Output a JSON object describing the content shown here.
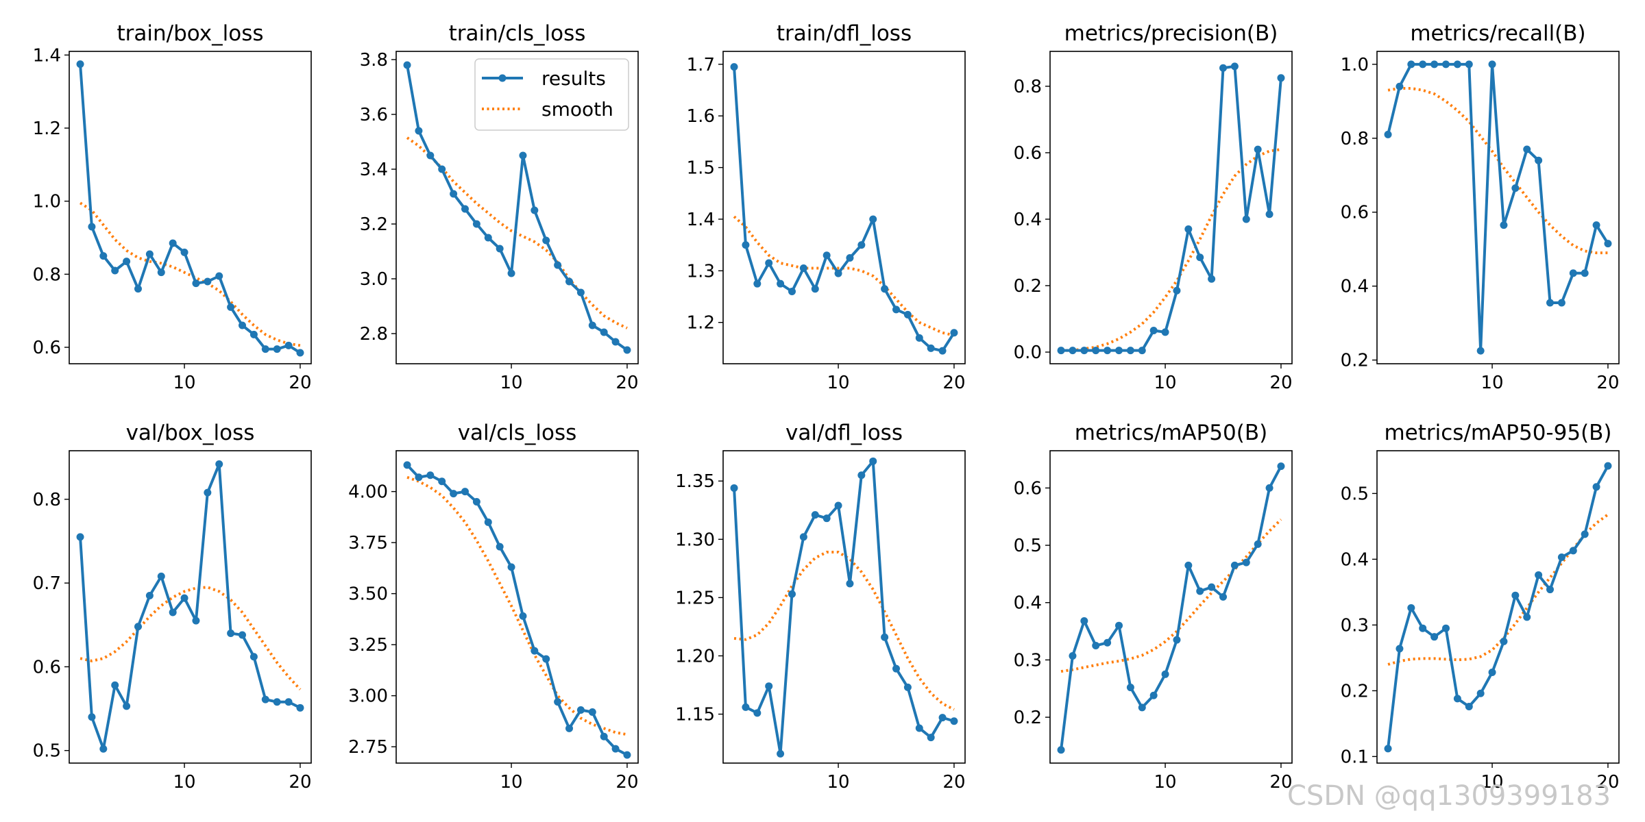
{
  "colors": {
    "results": "#1f77b4",
    "smooth": "#ff7f0e",
    "axis": "#000000",
    "watermark": "#c8c8c8"
  },
  "legend": {
    "results_label": "results",
    "smooth_label": "smooth",
    "placement": "upper-right of train/cls_loss"
  },
  "watermark": "CSDN @qq1309399183",
  "chart_data": [
    {
      "type": "line",
      "title": "train/box_loss",
      "x": [
        1,
        2,
        3,
        4,
        5,
        6,
        7,
        8,
        9,
        10,
        11,
        12,
        13,
        14,
        15,
        16,
        17,
        18,
        19,
        20
      ],
      "xlim": [
        0.05,
        20.95
      ],
      "xticks": [
        10,
        20
      ],
      "ylim": [
        0.555,
        1.41
      ],
      "yticks": [
        0.6,
        0.8,
        1.0,
        1.2,
        1.4
      ],
      "ytick_labels": [
        "0.6",
        "0.8",
        "1.0",
        "1.2",
        "1.4"
      ],
      "series": [
        {
          "name": "results",
          "values": [
            1.375,
            0.93,
            0.85,
            0.81,
            0.835,
            0.76,
            0.855,
            0.805,
            0.885,
            0.86,
            0.775,
            0.78,
            0.795,
            0.71,
            0.66,
            0.635,
            0.595,
            0.595,
            0.605,
            0.585
          ]
        },
        {
          "name": "smooth",
          "values": [
            0.995,
            0.975,
            0.935,
            0.895,
            0.865,
            0.845,
            0.835,
            0.83,
            0.82,
            0.805,
            0.79,
            0.775,
            0.755,
            0.725,
            0.69,
            0.66,
            0.635,
            0.62,
            0.61,
            0.605
          ]
        }
      ]
    },
    {
      "type": "line",
      "title": "train/cls_loss",
      "x": [
        1,
        2,
        3,
        4,
        5,
        6,
        7,
        8,
        9,
        10,
        11,
        12,
        13,
        14,
        15,
        16,
        17,
        18,
        19,
        20
      ],
      "xlim": [
        0.05,
        20.95
      ],
      "xticks": [
        10,
        20
      ],
      "ylim": [
        2.69,
        3.83
      ],
      "yticks": [
        2.8,
        3.0,
        3.2,
        3.4,
        3.6,
        3.8
      ],
      "ytick_labels": [
        "2.8",
        "3.0",
        "3.2",
        "3.4",
        "3.6",
        "3.8"
      ],
      "series": [
        {
          "name": "results",
          "values": [
            3.78,
            3.54,
            3.45,
            3.4,
            3.31,
            3.255,
            3.2,
            3.15,
            3.11,
            3.02,
            3.45,
            3.25,
            3.14,
            3.05,
            2.99,
            2.95,
            2.83,
            2.805,
            2.77,
            2.74
          ]
        },
        {
          "name": "smooth",
          "values": [
            3.515,
            3.485,
            3.445,
            3.405,
            3.355,
            3.315,
            3.275,
            3.24,
            3.205,
            3.175,
            3.155,
            3.135,
            3.105,
            3.06,
            3.0,
            2.95,
            2.905,
            2.865,
            2.84,
            2.82
          ]
        }
      ]
    },
    {
      "type": "line",
      "title": "train/dfl_loss",
      "x": [
        1,
        2,
        3,
        4,
        5,
        6,
        7,
        8,
        9,
        10,
        11,
        12,
        13,
        14,
        15,
        16,
        17,
        18,
        19,
        20
      ],
      "xlim": [
        0.05,
        20.95
      ],
      "xticks": [
        10,
        20
      ],
      "ylim": [
        1.12,
        1.725
      ],
      "yticks": [
        1.2,
        1.3,
        1.4,
        1.5,
        1.6,
        1.7
      ],
      "ytick_labels": [
        "1.2",
        "1.3",
        "1.4",
        "1.5",
        "1.6",
        "1.7"
      ],
      "series": [
        {
          "name": "results",
          "values": [
            1.695,
            1.35,
            1.275,
            1.315,
            1.275,
            1.26,
            1.305,
            1.265,
            1.33,
            1.295,
            1.325,
            1.35,
            1.4,
            1.265,
            1.225,
            1.215,
            1.17,
            1.15,
            1.145,
            1.18
          ]
        },
        {
          "name": "smooth",
          "values": [
            1.405,
            1.385,
            1.355,
            1.33,
            1.315,
            1.31,
            1.305,
            1.305,
            1.305,
            1.305,
            1.305,
            1.3,
            1.29,
            1.27,
            1.245,
            1.22,
            1.2,
            1.19,
            1.18,
            1.175
          ]
        }
      ]
    },
    {
      "type": "line",
      "title": "metrics/precision(B)",
      "x": [
        1,
        2,
        3,
        4,
        5,
        6,
        7,
        8,
        9,
        10,
        11,
        12,
        13,
        14,
        15,
        16,
        17,
        18,
        19,
        20
      ],
      "xlim": [
        0.05,
        20.95
      ],
      "xticks": [
        10,
        20
      ],
      "ylim": [
        -0.035,
        0.905
      ],
      "yticks": [
        0.0,
        0.2,
        0.4,
        0.6,
        0.8
      ],
      "ytick_labels": [
        "0.0",
        "0.2",
        "0.4",
        "0.6",
        "0.8"
      ],
      "series": [
        {
          "name": "results",
          "values": [
            0.005,
            0.005,
            0.005,
            0.005,
            0.005,
            0.005,
            0.005,
            0.005,
            0.065,
            0.06,
            0.185,
            0.37,
            0.285,
            0.22,
            0.855,
            0.86,
            0.4,
            0.61,
            0.415,
            0.825
          ]
        },
        {
          "name": "smooth",
          "values": [
            0.005,
            0.005,
            0.01,
            0.015,
            0.025,
            0.04,
            0.06,
            0.085,
            0.12,
            0.165,
            0.215,
            0.275,
            0.34,
            0.41,
            0.475,
            0.53,
            0.565,
            0.59,
            0.605,
            0.61
          ]
        }
      ]
    },
    {
      "type": "line",
      "title": "metrics/recall(B)",
      "x": [
        1,
        2,
        3,
        4,
        5,
        6,
        7,
        8,
        9,
        10,
        11,
        12,
        13,
        14,
        15,
        16,
        17,
        18,
        19,
        20
      ],
      "xlim": [
        0.05,
        20.95
      ],
      "xticks": [
        10,
        20
      ],
      "ylim": [
        0.19,
        1.035
      ],
      "yticks": [
        0.2,
        0.4,
        0.6,
        0.8,
        1.0
      ],
      "ytick_labels": [
        "0.2",
        "0.4",
        "0.6",
        "0.8",
        "1.0"
      ],
      "series": [
        {
          "name": "results",
          "values": [
            0.81,
            0.94,
            1.0,
            1.0,
            1.0,
            1.0,
            1.0,
            1.0,
            0.225,
            1.0,
            0.565,
            0.665,
            0.77,
            0.74,
            0.355,
            0.355,
            0.435,
            0.435,
            0.565,
            0.515
          ]
        },
        {
          "name": "smooth",
          "values": [
            0.93,
            0.935,
            0.935,
            0.93,
            0.92,
            0.9,
            0.875,
            0.845,
            0.805,
            0.765,
            0.72,
            0.68,
            0.64,
            0.6,
            0.565,
            0.535,
            0.51,
            0.495,
            0.49,
            0.49
          ]
        }
      ]
    },
    {
      "type": "line",
      "title": "val/box_loss",
      "x": [
        1,
        2,
        3,
        4,
        5,
        6,
        7,
        8,
        9,
        10,
        11,
        12,
        13,
        14,
        15,
        16,
        17,
        18,
        19,
        20
      ],
      "xlim": [
        0.05,
        20.95
      ],
      "xticks": [
        10,
        20
      ],
      "ylim": [
        0.485,
        0.858
      ],
      "yticks": [
        0.5,
        0.6,
        0.7,
        0.8
      ],
      "ytick_labels": [
        "0.5",
        "0.6",
        "0.7",
        "0.8"
      ],
      "series": [
        {
          "name": "results",
          "values": [
            0.755,
            0.54,
            0.502,
            0.578,
            0.553,
            0.648,
            0.685,
            0.708,
            0.665,
            0.682,
            0.655,
            0.808,
            0.842,
            0.64,
            0.638,
            0.612,
            0.561,
            0.558,
            0.558,
            0.551
          ]
        },
        {
          "name": "smooth",
          "values": [
            0.61,
            0.607,
            0.61,
            0.618,
            0.63,
            0.645,
            0.66,
            0.673,
            0.683,
            0.69,
            0.694,
            0.695,
            0.69,
            0.68,
            0.665,
            0.645,
            0.625,
            0.605,
            0.588,
            0.573
          ]
        }
      ]
    },
    {
      "type": "line",
      "title": "val/cls_loss",
      "x": [
        1,
        2,
        3,
        4,
        5,
        6,
        7,
        8,
        9,
        10,
        11,
        12,
        13,
        14,
        15,
        16,
        17,
        18,
        19,
        20
      ],
      "xlim": [
        0.05,
        20.95
      ],
      "xticks": [
        10,
        20
      ],
      "ylim": [
        2.67,
        4.2
      ],
      "yticks": [
        2.75,
        3.0,
        3.25,
        3.5,
        3.75,
        4.0
      ],
      "ytick_labels": [
        "2.75",
        "3.00",
        "3.25",
        "3.50",
        "3.75",
        "4.00"
      ],
      "series": [
        {
          "name": "results",
          "values": [
            4.13,
            4.07,
            4.08,
            4.05,
            3.99,
            4.0,
            3.95,
            3.85,
            3.73,
            3.63,
            3.39,
            3.22,
            3.18,
            2.97,
            2.84,
            2.93,
            2.92,
            2.8,
            2.74,
            2.71
          ]
        },
        {
          "name": "smooth",
          "values": [
            4.07,
            4.05,
            4.02,
            3.98,
            3.92,
            3.85,
            3.76,
            3.66,
            3.55,
            3.44,
            3.32,
            3.2,
            3.1,
            3.0,
            2.94,
            2.89,
            2.86,
            2.84,
            2.82,
            2.81
          ]
        }
      ]
    },
    {
      "type": "line",
      "title": "val/dfl_loss",
      "x": [
        1,
        2,
        3,
        4,
        5,
        6,
        7,
        8,
        9,
        10,
        11,
        12,
        13,
        14,
        15,
        16,
        17,
        18,
        19,
        20
      ],
      "xlim": [
        0.05,
        20.95
      ],
      "xticks": [
        10,
        20
      ],
      "ylim": [
        1.108,
        1.376
      ],
      "yticks": [
        1.15,
        1.2,
        1.25,
        1.3,
        1.35
      ],
      "ytick_labels": [
        "1.15",
        "1.20",
        "1.25",
        "1.30",
        "1.35"
      ],
      "series": [
        {
          "name": "results",
          "values": [
            1.344,
            1.156,
            1.151,
            1.174,
            1.116,
            1.253,
            1.302,
            1.321,
            1.318,
            1.329,
            1.262,
            1.355,
            1.367,
            1.216,
            1.189,
            1.173,
            1.138,
            1.13,
            1.147,
            1.144
          ]
        },
        {
          "name": "smooth",
          "values": [
            1.215,
            1.214,
            1.218,
            1.228,
            1.243,
            1.26,
            1.274,
            1.284,
            1.289,
            1.289,
            1.283,
            1.272,
            1.257,
            1.238,
            1.218,
            1.198,
            1.181,
            1.168,
            1.159,
            1.154
          ]
        }
      ]
    },
    {
      "type": "line",
      "title": "metrics/mAP50(B)",
      "x": [
        1,
        2,
        3,
        4,
        5,
        6,
        7,
        8,
        9,
        10,
        11,
        12,
        13,
        14,
        15,
        16,
        17,
        18,
        19,
        20
      ],
      "xlim": [
        0.05,
        20.95
      ],
      "xticks": [
        10,
        20
      ],
      "ylim": [
        0.12,
        0.665
      ],
      "yticks": [
        0.2,
        0.3,
        0.4,
        0.5,
        0.6
      ],
      "ytick_labels": [
        "0.2",
        "0.3",
        "0.4",
        "0.5",
        "0.6"
      ],
      "series": [
        {
          "name": "results",
          "values": [
            0.143,
            0.307,
            0.368,
            0.325,
            0.33,
            0.36,
            0.252,
            0.217,
            0.238,
            0.275,
            0.335,
            0.465,
            0.42,
            0.427,
            0.41,
            0.465,
            0.47,
            0.502,
            0.6,
            0.638
          ]
        },
        {
          "name": "smooth",
          "values": [
            0.28,
            0.283,
            0.287,
            0.291,
            0.295,
            0.298,
            0.302,
            0.308,
            0.318,
            0.332,
            0.35,
            0.372,
            0.395,
            0.417,
            0.437,
            0.458,
            0.48,
            0.503,
            0.525,
            0.545
          ]
        }
      ]
    },
    {
      "type": "line",
      "title": "metrics/mAP50-95(B)",
      "x": [
        1,
        2,
        3,
        4,
        5,
        6,
        7,
        8,
        9,
        10,
        11,
        12,
        13,
        14,
        15,
        16,
        17,
        18,
        19,
        20
      ],
      "xlim": [
        0.05,
        20.95
      ],
      "xticks": [
        10,
        20
      ],
      "ylim": [
        0.09,
        0.565
      ],
      "yticks": [
        0.1,
        0.2,
        0.3,
        0.4,
        0.5
      ],
      "ytick_labels": [
        "0.1",
        "0.2",
        "0.3",
        "0.4",
        "0.5"
      ],
      "series": [
        {
          "name": "results",
          "values": [
            0.112,
            0.264,
            0.326,
            0.295,
            0.282,
            0.295,
            0.188,
            0.176,
            0.196,
            0.228,
            0.275,
            0.345,
            0.312,
            0.376,
            0.354,
            0.403,
            0.413,
            0.438,
            0.51,
            0.542
          ]
        },
        {
          "name": "smooth",
          "values": [
            0.24,
            0.245,
            0.248,
            0.249,
            0.249,
            0.248,
            0.247,
            0.248,
            0.252,
            0.262,
            0.28,
            0.302,
            0.326,
            0.35,
            0.372,
            0.394,
            0.416,
            0.438,
            0.455,
            0.468
          ]
        }
      ]
    }
  ]
}
